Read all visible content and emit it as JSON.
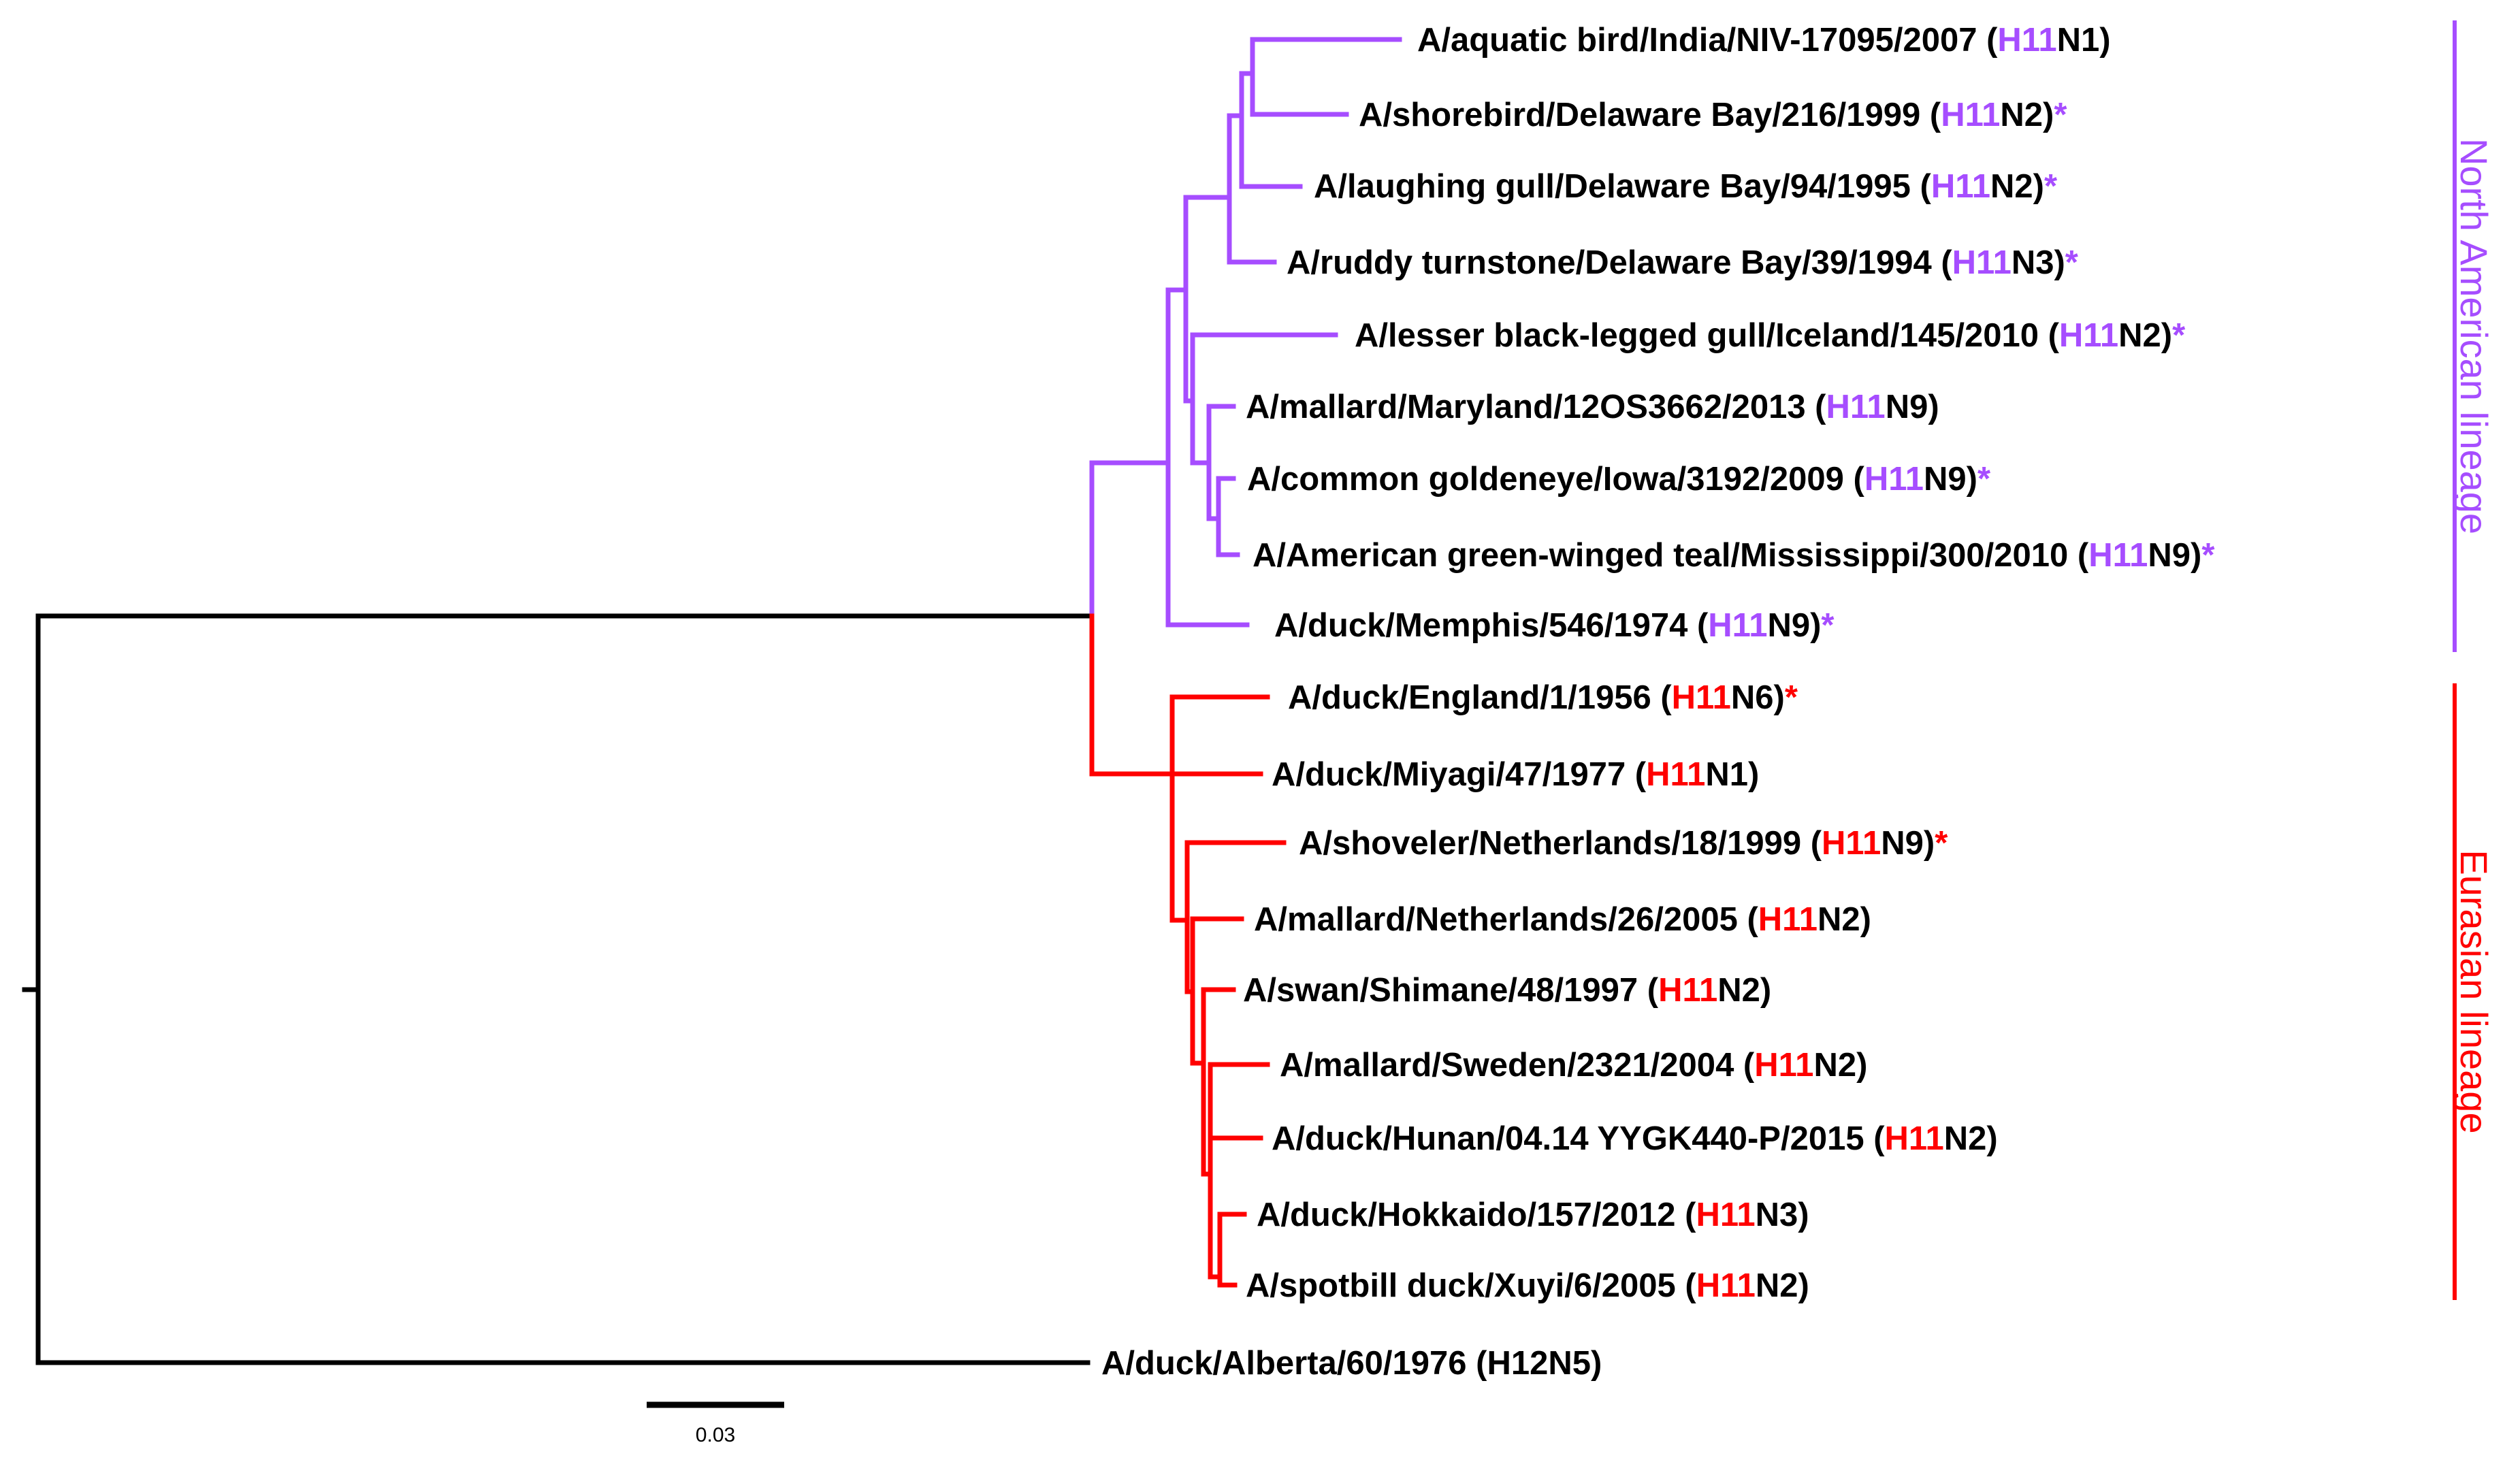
{
  "colors": {
    "north_american": "#a64dff",
    "eurasian": "#ff0000",
    "root": "#000000",
    "text": "#000000"
  },
  "north_american_leaves": [
    {
      "name": "A/aquatic bird/India/NIV-17095/2007 (",
      "h": "H11",
      "n": "N1)",
      "star": ""
    },
    {
      "name": "A/shorebird/Delaware Bay/216/1999 (",
      "h": "H11",
      "n": "N2)",
      "star": "*"
    },
    {
      "name": "A/laughing gull/Delaware Bay/94/1995 (",
      "h": "H11",
      "n": "N2)",
      "star": "*"
    },
    {
      "name": "A/ruddy turnstone/Delaware Bay/39/1994 (",
      "h": "H11",
      "n": "N3)",
      "star": "*"
    },
    {
      "name": "A/lesser black-legged gull/Iceland/145/2010 (",
      "h": "H11",
      "n": "N2)",
      "star": "*"
    },
    {
      "name": "A/mallard/Maryland/12OS3662/2013 (",
      "h": "H11",
      "n": "N9)",
      "star": ""
    },
    {
      "name": "A/common goldeneye/Iowa/3192/2009 (",
      "h": "H11",
      "n": "N9)",
      "star": "*"
    },
    {
      "name": "A/American green-winged teal/Mississippi/300/2010 (",
      "h": "H11",
      "n": "N9)",
      "star": "*"
    },
    {
      "name": "A/duck/Memphis/546/1974 (",
      "h": "H11",
      "n": "N9)",
      "star": "*"
    }
  ],
  "eurasian_leaves": [
    {
      "name": "A/duck/England/1/1956 (",
      "h": "H11",
      "n": "N6)",
      "star": "*"
    },
    {
      "name": "A/duck/Miyagi/47/1977 (",
      "h": "H11",
      "n": "N1)",
      "star": ""
    },
    {
      "name": "A/shoveler/Netherlands/18/1999 (",
      "h": "H11",
      "n": "N9)",
      "star": "*"
    },
    {
      "name": "A/mallard/Netherlands/26/2005 (",
      "h": "H11",
      "n": "N2)",
      "star": ""
    },
    {
      "name": "A/swan/Shimane/48/1997 (",
      "h": "H11",
      "n": "N2)",
      "star": ""
    },
    {
      "name": "A/mallard/Sweden/2321/2004 (",
      "h": "H11",
      "n": "N2)",
      "star": ""
    },
    {
      "name": "A/duck/Hunan/04.14 YYGK440-P/2015 (",
      "h": "H11",
      "n": "N2)",
      "star": ""
    },
    {
      "name": "A/duck/Hokkaido/157/2012 (",
      "h": "H11",
      "n": "N3)",
      "star": ""
    },
    {
      "name": "A/spotbill duck/Xuyi/6/2005 (",
      "h": "H11",
      "n": "N2)",
      "star": ""
    }
  ],
  "outgroup": {
    "name": "A/duck/Alberta/60/1976 (H12N5)"
  },
  "clades": {
    "north_american": "North American lineage",
    "eurasian": "Eurasian lineage"
  },
  "scale": {
    "label": "0.03"
  }
}
